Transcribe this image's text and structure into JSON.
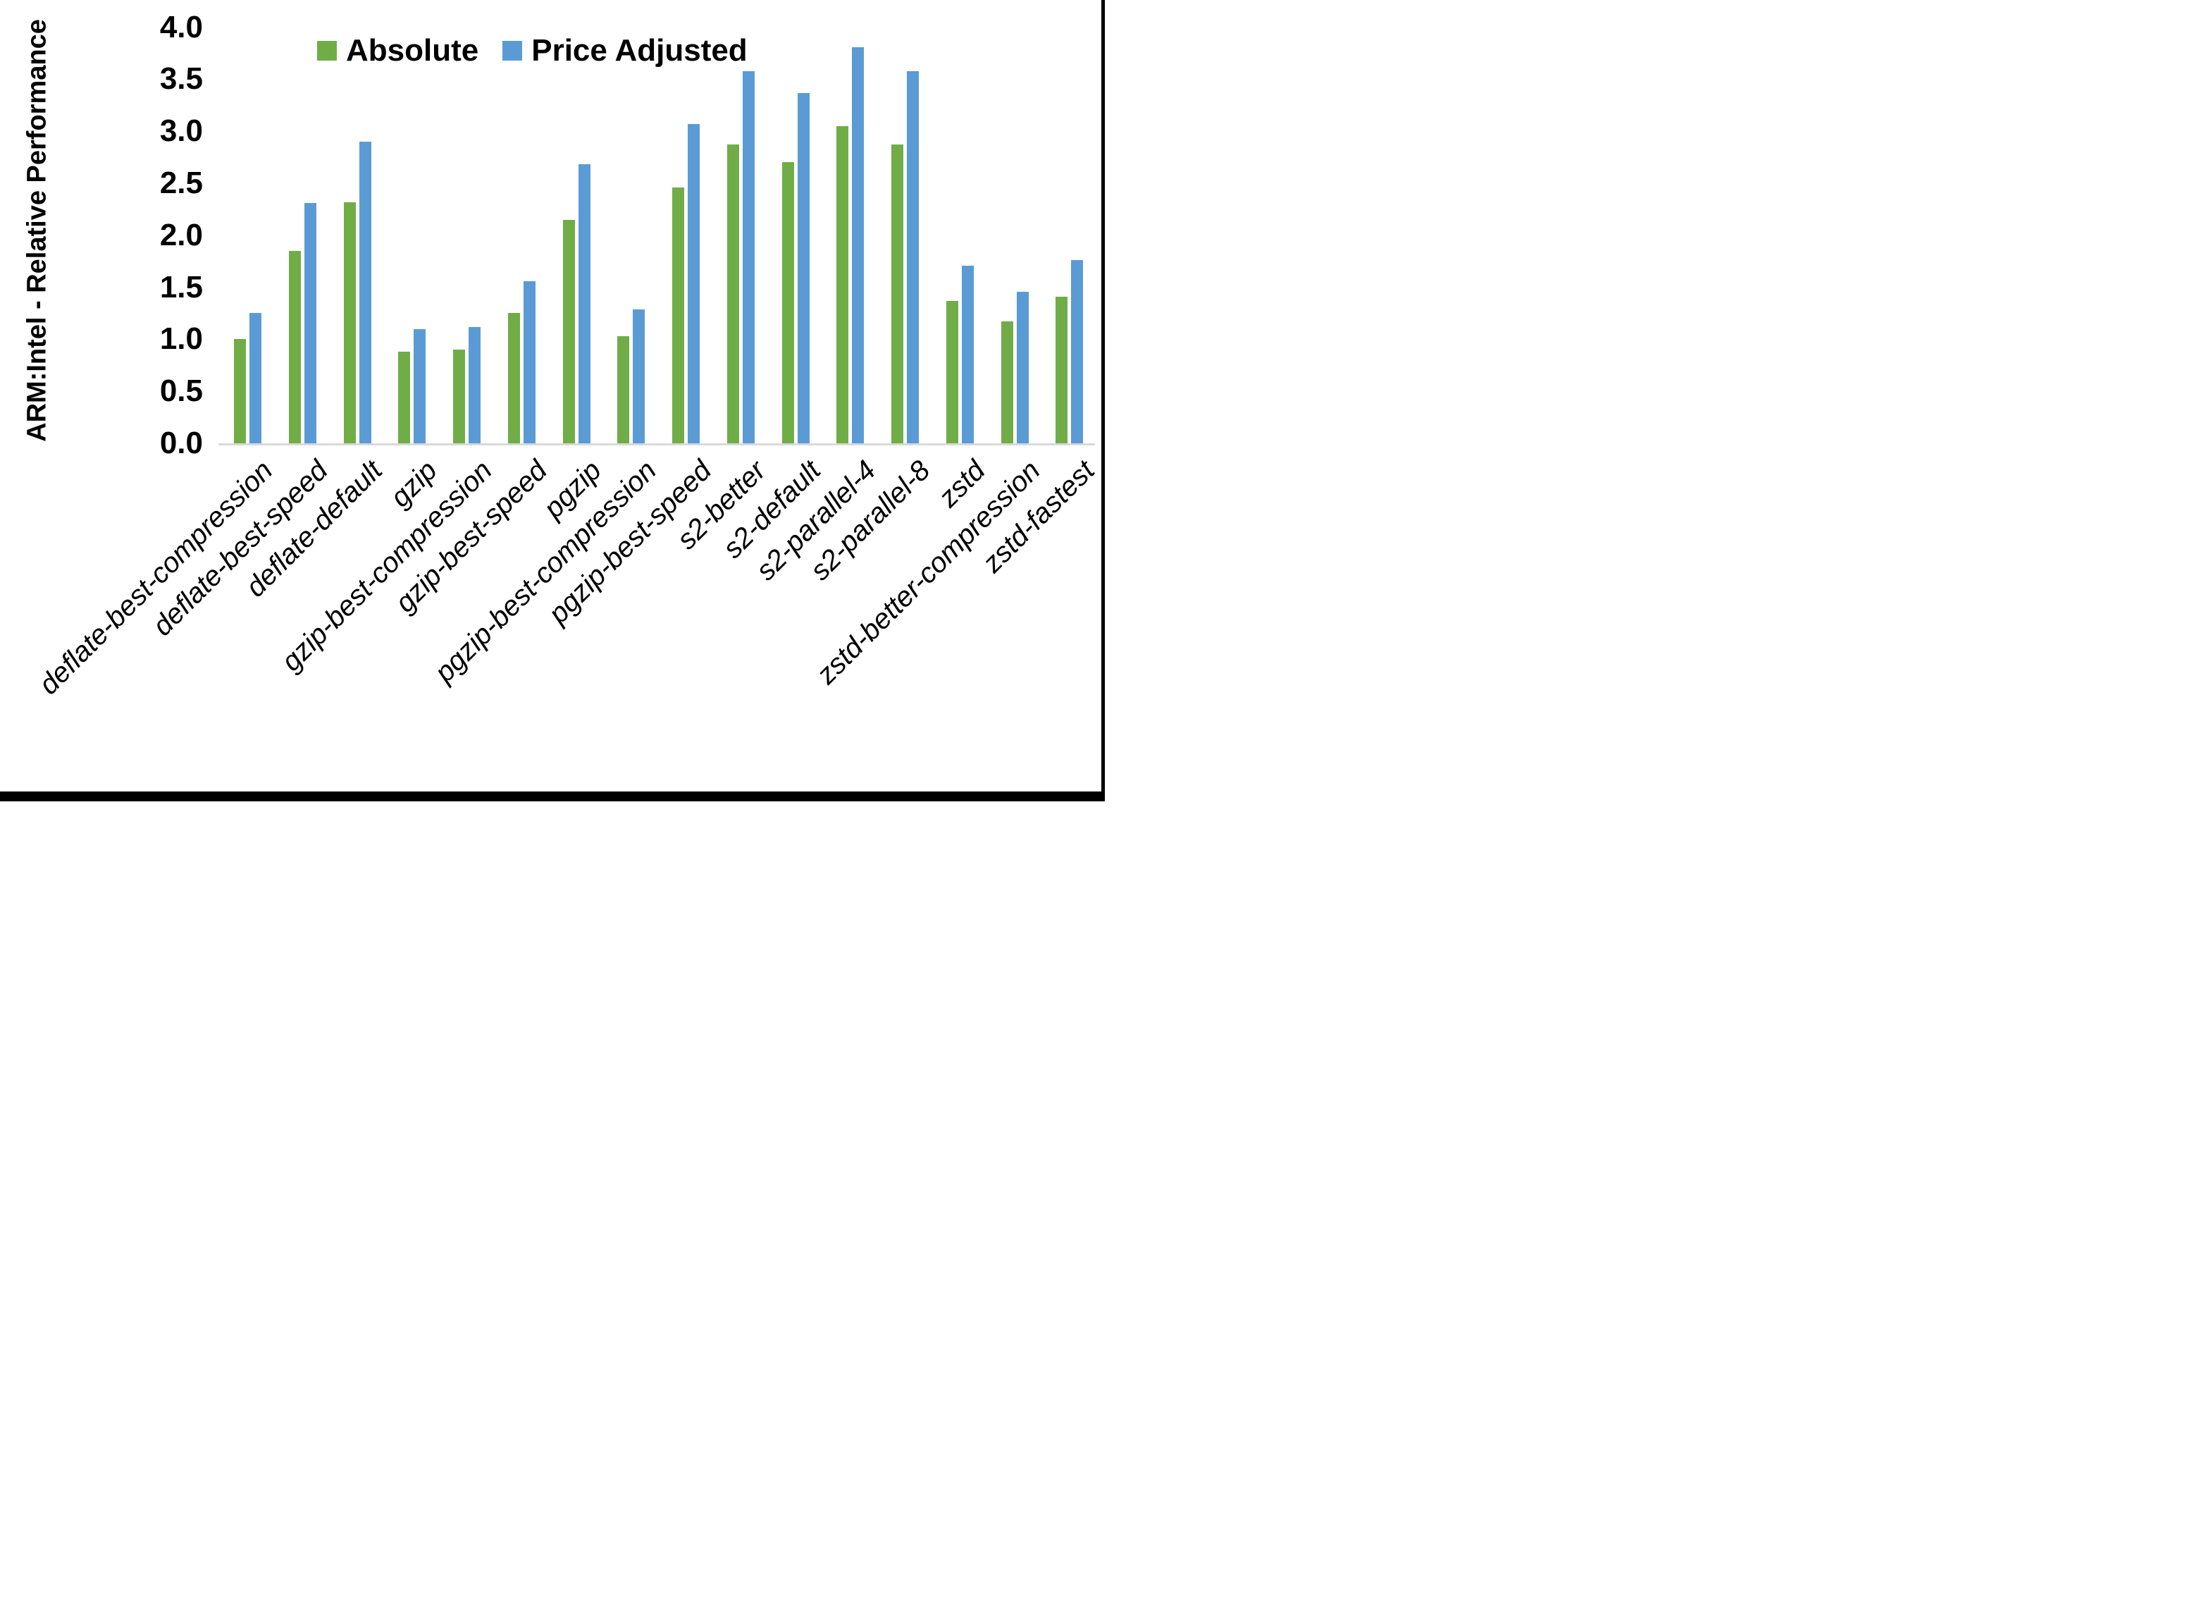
{
  "figure": {
    "border_color": "#000000",
    "background": "#ffffff"
  },
  "chart_data": {
    "type": "bar",
    "title": "",
    "xlabel": "",
    "ylabel": "ARM:Intel - Relative Performance",
    "ylim": [
      0.0,
      4.0
    ],
    "y_ticks": [
      "4.0",
      "3.5",
      "3.0",
      "2.5",
      "2.0",
      "1.5",
      "1.0",
      "0.5",
      "0.0"
    ],
    "grid": false,
    "legend_position": "top",
    "axis_line_color": "#d9d9d9",
    "categories": [
      "deflate-best-compression",
      "deflate-best-speed",
      "deflate-default",
      "gzip",
      "gzip-best-compression",
      "gzip-best-speed",
      "pgzip",
      "pgzip-best-compression",
      "pgzip-best-speed",
      "s2-better",
      "s2-default",
      "s2-parallel-4",
      "s2-parallel-8",
      "zstd",
      "zstd-better-compression",
      "zstd-fastest"
    ],
    "series": [
      {
        "name": "Absolute",
        "color": "#70AD47",
        "values": [
          1.0,
          1.85,
          2.32,
          0.88,
          0.9,
          1.25,
          2.15,
          1.03,
          2.46,
          2.87,
          2.7,
          3.05,
          2.87,
          1.37,
          1.17,
          1.41
        ]
      },
      {
        "name": "Price Adjusted",
        "color": "#5B9BD5",
        "values": [
          1.25,
          2.31,
          2.9,
          1.1,
          1.12,
          1.56,
          2.68,
          1.29,
          3.07,
          3.58,
          3.37,
          3.81,
          3.58,
          1.71,
          1.46,
          1.76
        ]
      }
    ]
  }
}
